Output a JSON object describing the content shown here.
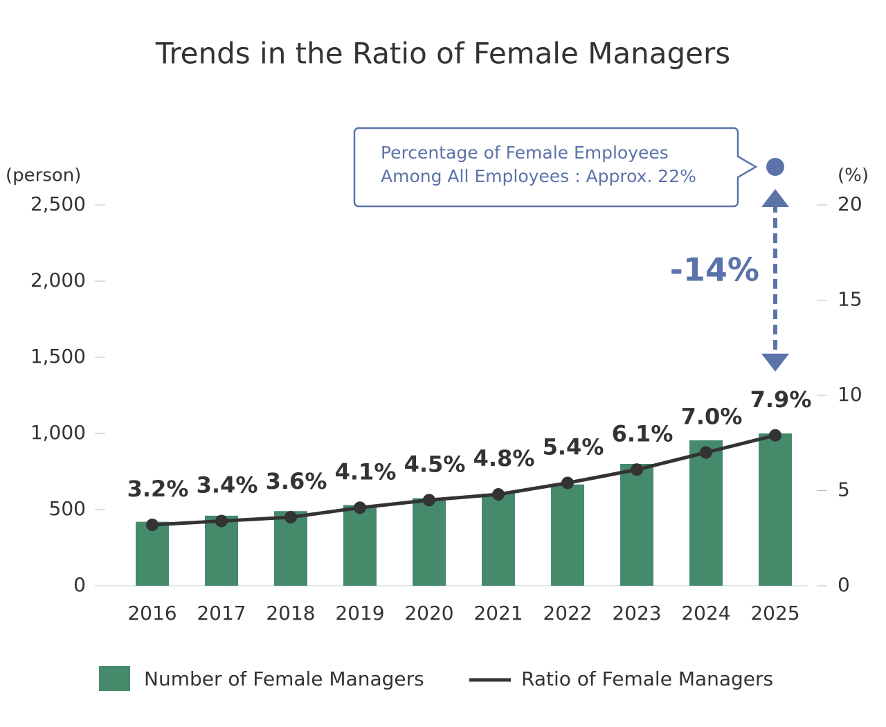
{
  "chart_data": {
    "type": "bar",
    "title": "Trends in the Ratio of Female Managers",
    "categories": [
      "2016",
      "2017",
      "2018",
      "2019",
      "2020",
      "2021",
      "2022",
      "2023",
      "2024",
      "2025"
    ],
    "series": [
      {
        "name": "Number of Female Managers",
        "type": "bar",
        "color": "#458a6b",
        "values": [
          420,
          460,
          490,
          530,
          575,
          605,
          665,
          800,
          955,
          1000
        ]
      },
      {
        "name": "Ratio of Female Managers",
        "type": "line",
        "axis": "y2",
        "color": "#333333",
        "values": [
          3.2,
          3.4,
          3.6,
          4.1,
          4.5,
          4.8,
          5.4,
          6.1,
          7.0,
          7.9
        ],
        "value_labels": [
          "3.2%",
          "3.4%",
          "3.6%",
          "4.1%",
          "4.5%",
          "4.8%",
          "5.4%",
          "6.1%",
          "7.0%",
          "7.9%"
        ]
      }
    ],
    "ylabel": "(person)",
    "y2label": "(%)",
    "ylim": [
      0,
      2500
    ],
    "yticks": [
      0,
      500,
      {
        "value": 1000,
        "label": "1,000"
      },
      {
        "value": 1500,
        "label": "1,500"
      },
      {
        "value": 2000,
        "label": "2,000"
      },
      {
        "value": 2500,
        "label": "2,500"
      }
    ],
    "y2lim": [
      0,
      20
    ],
    "y2ticks": [
      0,
      5,
      10,
      15,
      20
    ],
    "annotation": {
      "lines": [
        "Percentage of Female Employees",
        "Among All Employees : Approx. 22%"
      ],
      "reference_value": 22,
      "difference_label": "-14%",
      "color": "#5b73a8"
    },
    "legend": "bottom"
  }
}
